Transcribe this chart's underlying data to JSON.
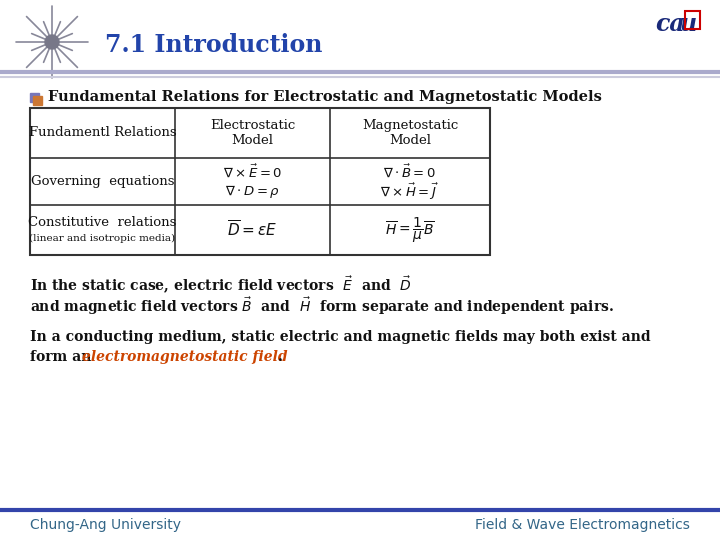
{
  "title": "7.1 Introduction",
  "bg_color": "#ffffff",
  "section_title": "Fundamental Relations for Electrostatic and Magnetostatic Models",
  "table_col0_header": "Fundamentl Relations",
  "table_col1_header": "Electrostatic\nModel",
  "table_col2_header": "Magnetostatic\nModel",
  "row1_label": "Governing  equations",
  "row2_label_line1": "Constitutive  relations",
  "row2_label_line2": "(linear and isotropic media)",
  "footer_left": "Chung-Ang University",
  "footer_right": "Field & Wave Electromagnetics",
  "title_color": "#2244aa",
  "text_color": "#111111",
  "footer_color": "#336688",
  "border_color": "#333333",
  "header_line_color1": "#aaaacc",
  "header_line_color2": "#ccccdd",
  "footer_line_color": "#3344aa",
  "star_color": "#888899",
  "cau_color": "#1a2a7a",
  "cau_red": "#cc0000",
  "orange_italic": "#cc4400"
}
